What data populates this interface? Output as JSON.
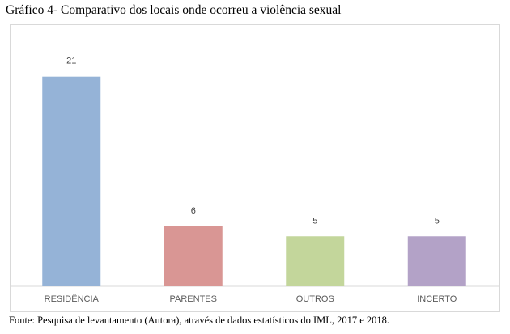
{
  "header": {
    "title": "Gráfico 4- Comparativo dos locais onde ocorreu a violência sexual"
  },
  "footer": {
    "source": "Fonte: Pesquisa de levantamento (Autora), através de dados estatísticos do IML, 2017 e 2018."
  },
  "chart_data": {
    "type": "bar",
    "categories": [
      "RESIDÊNCIA",
      "PARENTES",
      "OUTROS",
      "INCERTO"
    ],
    "values": [
      21,
      6,
      5,
      5
    ],
    "colors": [
      "#95b3d7",
      "#d99694",
      "#c3d69b",
      "#b3a2c7"
    ],
    "ylim": [
      0,
      23
    ],
    "grid": false,
    "legend": "none",
    "data_labels": true
  }
}
